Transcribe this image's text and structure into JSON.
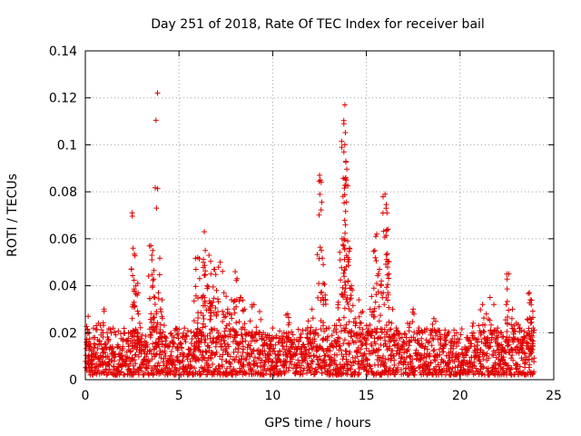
{
  "chart_data": {
    "type": "scatter",
    "title": "Day 251 of 2018, Rate Of TEC Index for receiver bail",
    "xlabel": "GPS time / hours",
    "ylabel": "ROTI / TECUs",
    "xlim": [
      0,
      25
    ],
    "ylim": [
      0,
      0.14
    ],
    "xticks": [
      0,
      5,
      10,
      15,
      20,
      25
    ],
    "xtick_labels": [
      "0",
      "5",
      "10",
      "15",
      "20",
      "25"
    ],
    "yticks": [
      0,
      0.02,
      0.04,
      0.06,
      0.08,
      0.1,
      0.12,
      0.14
    ],
    "ytick_labels": [
      "0",
      "0.02",
      "0.04",
      "0.06",
      "0.08",
      "0.1",
      "0.12",
      "0.14"
    ],
    "grid": true,
    "marker": "+",
    "color": "#e00000",
    "series": [
      {
        "name": "ROTI",
        "points": [
          [
            0.1,
            0.009
          ],
          [
            0.15,
            0.027
          ],
          [
            0.3,
            0.013
          ],
          [
            0.5,
            0.018
          ],
          [
            0.7,
            0.024
          ],
          [
            0.9,
            0.013
          ],
          [
            1.0,
            0.03
          ],
          [
            1.2,
            0.01
          ],
          [
            1.5,
            0.012
          ],
          [
            1.8,
            0.011
          ],
          [
            2.0,
            0.014
          ],
          [
            2.3,
            0.02
          ],
          [
            2.5,
            0.026
          ],
          [
            2.5,
            0.071
          ],
          [
            2.55,
            0.056
          ],
          [
            2.6,
            0.033
          ],
          [
            2.7,
            0.04
          ],
          [
            2.8,
            0.041
          ],
          [
            2.9,
            0.024
          ],
          [
            3.1,
            0.013
          ],
          [
            3.3,
            0.015
          ],
          [
            3.5,
            0.057
          ],
          [
            3.55,
            0.053
          ],
          [
            3.6,
            0.055
          ],
          [
            3.7,
            0.035
          ],
          [
            3.8,
            0.029
          ],
          [
            3.85,
            0.122
          ],
          [
            3.9,
            0.037
          ],
          [
            4.0,
            0.02
          ],
          [
            4.1,
            0.034
          ],
          [
            4.3,
            0.015
          ],
          [
            4.6,
            0.012
          ],
          [
            4.9,
            0.014
          ],
          [
            5.2,
            0.01
          ],
          [
            5.5,
            0.013
          ],
          [
            5.8,
            0.02
          ],
          [
            5.9,
            0.047
          ],
          [
            6.0,
            0.052
          ],
          [
            6.1,
            0.043
          ],
          [
            6.2,
            0.035
          ],
          [
            6.3,
            0.05
          ],
          [
            6.35,
            0.063
          ],
          [
            6.4,
            0.055
          ],
          [
            6.5,
            0.04
          ],
          [
            6.6,
            0.053
          ],
          [
            6.7,
            0.045
          ],
          [
            6.8,
            0.033
          ],
          [
            6.9,
            0.047
          ],
          [
            7.0,
            0.038
          ],
          [
            7.2,
            0.05
          ],
          [
            7.4,
            0.037
          ],
          [
            7.6,
            0.03
          ],
          [
            7.8,
            0.034
          ],
          [
            8.0,
            0.046
          ],
          [
            8.1,
            0.043
          ],
          [
            8.3,
            0.035
          ],
          [
            8.5,
            0.03
          ],
          [
            8.8,
            0.025
          ],
          [
            9.0,
            0.032
          ],
          [
            9.3,
            0.029
          ],
          [
            9.5,
            0.02
          ],
          [
            9.8,
            0.018
          ],
          [
            10.0,
            0.022
          ],
          [
            10.3,
            0.016
          ],
          [
            10.6,
            0.02
          ],
          [
            10.8,
            0.028
          ],
          [
            11.0,
            0.015
          ],
          [
            11.3,
            0.013
          ],
          [
            11.6,
            0.021
          ],
          [
            11.9,
            0.025
          ],
          [
            12.1,
            0.03
          ],
          [
            12.3,
            0.02
          ],
          [
            12.5,
            0.087
          ],
          [
            12.55,
            0.085
          ],
          [
            12.6,
            0.055
          ],
          [
            12.7,
            0.041
          ],
          [
            12.8,
            0.036
          ],
          [
            13.0,
            0.022
          ],
          [
            13.3,
            0.023
          ],
          [
            13.5,
            0.033
          ],
          [
            13.6,
            0.051
          ],
          [
            13.7,
            0.06
          ],
          [
            13.75,
            0.078
          ],
          [
            13.8,
            0.097
          ],
          [
            13.8,
            0.109
          ],
          [
            13.85,
            0.117
          ],
          [
            13.85,
            0.1
          ],
          [
            13.9,
            0.093
          ],
          [
            13.9,
            0.086
          ],
          [
            14.0,
            0.059
          ],
          [
            14.0,
            0.052
          ],
          [
            14.1,
            0.056
          ],
          [
            14.2,
            0.04
          ],
          [
            14.4,
            0.026
          ],
          [
            14.6,
            0.034
          ],
          [
            14.8,
            0.029
          ],
          [
            15.0,
            0.023
          ],
          [
            15.2,
            0.03
          ],
          [
            15.4,
            0.039
          ],
          [
            15.5,
            0.061
          ],
          [
            15.55,
            0.062
          ],
          [
            15.7,
            0.047
          ],
          [
            15.8,
            0.042
          ],
          [
            15.9,
            0.037
          ],
          [
            16.0,
            0.079
          ],
          [
            16.05,
            0.073
          ],
          [
            16.1,
            0.071
          ],
          [
            16.15,
            0.064
          ],
          [
            16.2,
            0.045
          ],
          [
            16.4,
            0.03
          ],
          [
            16.6,
            0.022
          ],
          [
            16.9,
            0.018
          ],
          [
            17.2,
            0.024
          ],
          [
            17.5,
            0.03
          ],
          [
            17.8,
            0.022
          ],
          [
            18.0,
            0.02
          ],
          [
            18.3,
            0.016
          ],
          [
            18.6,
            0.026
          ],
          [
            18.9,
            0.021
          ],
          [
            19.2,
            0.015
          ],
          [
            19.5,
            0.012
          ],
          [
            19.8,
            0.01
          ],
          [
            20.1,
            0.013
          ],
          [
            20.4,
            0.018
          ],
          [
            20.7,
            0.024
          ],
          [
            21.0,
            0.023
          ],
          [
            21.2,
            0.032
          ],
          [
            21.4,
            0.028
          ],
          [
            21.6,
            0.035
          ],
          [
            21.8,
            0.032
          ],
          [
            22.0,
            0.022
          ],
          [
            22.2,
            0.015
          ],
          [
            22.4,
            0.012
          ],
          [
            22.5,
            0.045
          ],
          [
            22.6,
            0.045
          ],
          [
            22.8,
            0.03
          ],
          [
            23.0,
            0.024
          ],
          [
            23.2,
            0.022
          ],
          [
            23.4,
            0.018
          ],
          [
            23.6,
            0.02
          ],
          [
            23.7,
            0.037
          ],
          [
            23.75,
            0.034
          ],
          [
            23.8,
            0.032
          ],
          [
            23.9,
            0.022
          ]
        ],
        "baseline_band": [
          0.002,
          0.022
        ]
      }
    ]
  }
}
